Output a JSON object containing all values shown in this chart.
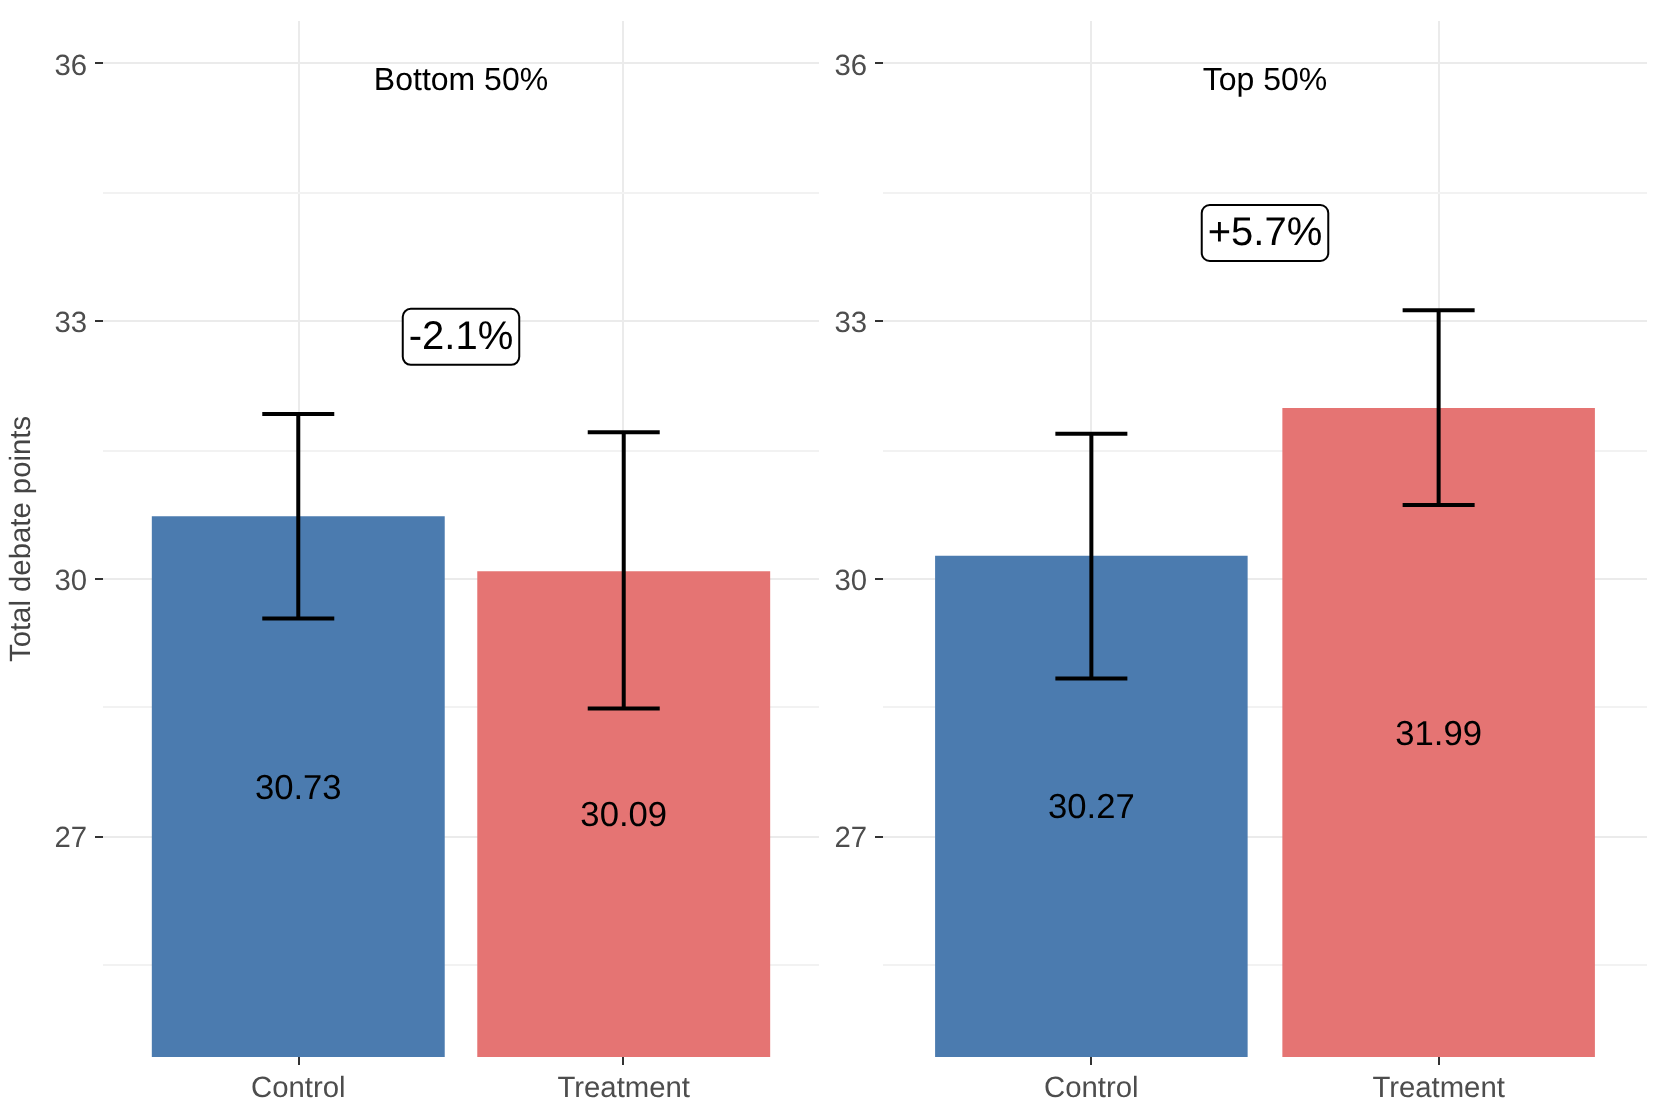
{
  "chart_data": [
    {
      "type": "bar",
      "title": "Bottom 50%",
      "ylabel": "Total debate points",
      "categories": [
        "Control",
        "Treatment"
      ],
      "values": [
        30.73,
        30.09
      ],
      "colors": [
        "#4b7baf",
        "#e57473"
      ],
      "errors": [
        [
          29.54,
          31.92
        ],
        [
          28.49,
          31.71
        ]
      ],
      "data_labels": true,
      "annotations": [
        "-2.1%"
      ],
      "ylim": [
        24.43,
        36.5
      ],
      "yticks": [
        27,
        30,
        33,
        36
      ],
      "grid": true
    },
    {
      "type": "bar",
      "title": "Top 50%",
      "categories": [
        "Control",
        "Treatment"
      ],
      "values": [
        30.27,
        31.99
      ],
      "colors": [
        "#4b7baf",
        "#e57473"
      ],
      "errors": [
        [
          28.84,
          31.69
        ],
        [
          30.86,
          33.13
        ]
      ],
      "data_labels": true,
      "annotations": [
        "+5.7%"
      ],
      "ylim": [
        24.43,
        36.5
      ],
      "yticks": [
        27,
        30,
        33,
        36
      ],
      "grid": true
    }
  ]
}
